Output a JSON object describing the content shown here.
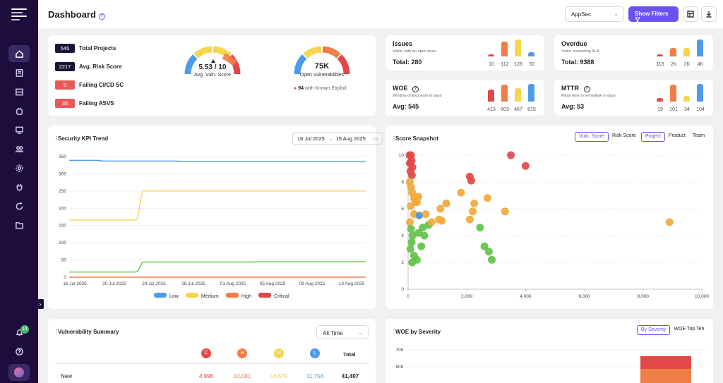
{
  "colors": {
    "accent": "#6e52ee",
    "low": "#4e9bea",
    "medium": "#f7d64d",
    "high": "#ef7f45",
    "critical": "#e24848",
    "green": "#62c248",
    "orange": "#f2a93b"
  },
  "header": {
    "title": "Dashboard",
    "help_icon": "?",
    "scope_select": "AppSec",
    "filter_button": "Show Filters"
  },
  "sidebar": {
    "notification_count": "14",
    "icons": [
      "home-icon",
      "report-icon",
      "list-icon",
      "bug-icon",
      "monitor-icon",
      "users-icon",
      "settings-icon",
      "plug-icon",
      "refresh-icon",
      "folder-icon"
    ]
  },
  "overview": {
    "kpis": [
      {
        "value": "545",
        "label": "Total Projects",
        "color": "#1a1636"
      },
      {
        "value": "2217",
        "label": "Avg. Risk Score",
        "color": "#1a1636"
      },
      {
        "value": "5",
        "label": "Failing CI/CD SC",
        "color": "#e85a5a"
      },
      {
        "value": "35",
        "label": "Failing ASVS",
        "color": "#e85a5a"
      }
    ],
    "vuln_score_gauge": {
      "value": "5.53 / 10",
      "label": "Avg. Vuln. Score",
      "fraction": 0.553
    },
    "open_vuln_gauge": {
      "value": "75K",
      "label": "Open Vulnerabilities",
      "fraction": 0.62
    },
    "exploit": {
      "count": "94",
      "text": "with Known Exploit"
    }
  },
  "metrics": [
    {
      "title": "Issues",
      "subtitle": "Vulns. with an open issue",
      "total": "Total: 280",
      "bars": [
        {
          "label": "10",
          "value": 10
        },
        {
          "label": "112",
          "value": 112
        },
        {
          "label": "128",
          "value": 128
        },
        {
          "label": "30",
          "value": 30
        }
      ]
    },
    {
      "title": "Overdue",
      "subtitle": "Vulns. exceeding SLA",
      "total": "Total: 9388",
      "bars": [
        {
          "label": "118",
          "value": 118
        },
        {
          "label": "2K",
          "value": 2000
        },
        {
          "label": "2K",
          "value": 2000
        },
        {
          "label": "4K",
          "value": 4000
        }
      ]
    },
    {
      "title": "WOE",
      "subtitle": "Window of Exposure in days",
      "total": "Avg: 545",
      "bars": [
        {
          "label": "413",
          "value": 413
        },
        {
          "label": "603",
          "value": 603
        },
        {
          "label": "467",
          "value": 467
        },
        {
          "label": "615",
          "value": 615
        }
      ]
    },
    {
      "title": "MTTR",
      "subtitle": "Mean time to remediate in days",
      "total": "Avg: 53",
      "bars": [
        {
          "label": "19",
          "value": 19
        },
        {
          "label": "101",
          "value": 101
        },
        {
          "label": "34",
          "value": 34
        },
        {
          "label": "104",
          "value": 104
        }
      ]
    }
  ],
  "kpi_trend": {
    "title": "Security KPI Trend",
    "date_from": "16 Jul 2025",
    "date_arrow": "→",
    "date_to": "15 Aug 2025"
  },
  "snapshot": {
    "title": "Score Snapshot",
    "metric_tabs": [
      "Vuln. Score",
      "Risk Score"
    ],
    "group_tabs": [
      "Project",
      "Product",
      "Team"
    ]
  },
  "vuln_summary": {
    "title": "Vulnerability Summary",
    "range": "All Time",
    "columns": [
      "C",
      "H",
      "M",
      "L"
    ],
    "total_header": "Total",
    "rows": [
      {
        "label": "New",
        "values": [
          "4,998",
          "10,081",
          "14,570",
          "11,758"
        ],
        "total": "41,407"
      }
    ]
  },
  "woe_severity": {
    "title": "WOE by Severity",
    "tabs": [
      "By Severity",
      "WOE Top Ten"
    ]
  },
  "chart_data": [
    {
      "type": "line",
      "title": "Security KPI Trend",
      "x": [
        "16 Jul 2025",
        "20 Jul 2025",
        "24 Jul 2025",
        "28 Jul 2025",
        "01 Aug 2025",
        "05 Aug 2025",
        "09 Aug 2025",
        "13 Aug 2025"
      ],
      "ylim": [
        0,
        350
      ],
      "yticks": [
        "0",
        "50",
        "100",
        "150",
        "200",
        "250",
        "300",
        "350"
      ],
      "series": [
        {
          "name": "Low",
          "color": "#4e9bea",
          "values": [
            339,
            337,
            337,
            336,
            336,
            336,
            336,
            335
          ]
        },
        {
          "name": "Medium",
          "color": "#f7d64d",
          "values": [
            166,
            166,
            250,
            250,
            250,
            250,
            250,
            250
          ]
        },
        {
          "name": "High",
          "color": "#ef7f45",
          "values": [
            0,
            0,
            0,
            0,
            0,
            0,
            0,
            0
          ]
        },
        {
          "name": "Critical",
          "color": "#62c248",
          "values": [
            15,
            15,
            44,
            44,
            44,
            45,
            45,
            45
          ]
        }
      ],
      "legend": [
        "Low",
        "Medium",
        "High",
        "Critical"
      ]
    },
    {
      "type": "scatter",
      "title": "Score Snapshot",
      "xlim": [
        0,
        10000
      ],
      "ylim": [
        0,
        10
      ],
      "xticks": [
        "0",
        "2,000",
        "4,000",
        "6,000",
        "8,000",
        "10,000"
      ],
      "yticks": [
        "0",
        "2",
        "4",
        "6",
        "8",
        "10"
      ],
      "points": [
        [
          50,
          10
        ],
        [
          100,
          10
        ],
        [
          120,
          9.6
        ],
        [
          60,
          9.4
        ],
        [
          150,
          9.1
        ],
        [
          80,
          8.8
        ],
        [
          130,
          8.5
        ],
        [
          3500,
          10
        ],
        [
          4000,
          9.2
        ],
        [
          2100,
          8.4
        ],
        [
          2150,
          8.1
        ],
        [
          8900,
          5
        ],
        [
          60,
          8
        ],
        [
          100,
          7.6
        ],
        [
          140,
          7.2
        ],
        [
          200,
          6.8
        ],
        [
          250,
          6.5
        ],
        [
          90,
          6.2
        ],
        [
          300,
          6.5
        ],
        [
          350,
          6.9
        ],
        [
          1100,
          6
        ],
        [
          1300,
          6.4
        ],
        [
          1800,
          7.2
        ],
        [
          2700,
          6.8
        ],
        [
          2250,
          6.4
        ],
        [
          2200,
          5.8
        ],
        [
          3300,
          5.8
        ],
        [
          1050,
          5.2
        ],
        [
          1150,
          5.1
        ],
        [
          2100,
          5.2
        ],
        [
          2450,
          4.6
        ],
        [
          2600,
          3.2
        ],
        [
          2750,
          2.8
        ],
        [
          2850,
          2.2
        ],
        [
          700,
          4.8
        ],
        [
          800,
          5
        ],
        [
          600,
          5.6
        ],
        [
          500,
          4.6
        ],
        [
          550,
          4
        ],
        [
          450,
          3.2
        ],
        [
          60,
          5
        ],
        [
          100,
          4.5
        ],
        [
          150,
          4
        ],
        [
          120,
          3.5
        ],
        [
          80,
          3
        ],
        [
          200,
          2.5
        ],
        [
          140,
          2
        ],
        [
          300,
          2.2
        ],
        [
          200,
          5.6
        ],
        [
          350,
          4.2
        ],
        [
          380,
          5.5
        ]
      ],
      "colors_by_y": "red >8, orange 5-8, green <5"
    },
    {
      "type": "bar",
      "title": "WOE by Severity",
      "yticks": [
        "60K",
        "70K"
      ],
      "series": [
        {
          "name": "Critical",
          "color": "#e24848"
        },
        {
          "name": "High",
          "color": "#ef7f45"
        }
      ]
    }
  ]
}
